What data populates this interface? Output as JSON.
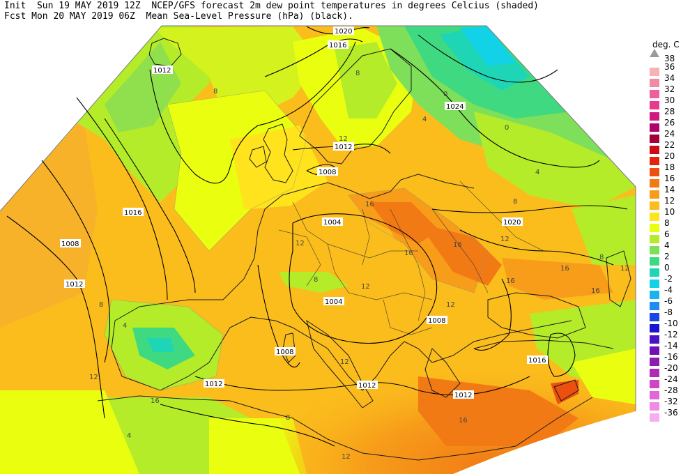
{
  "header": {
    "line1": "Init  Sun 19 MAY 2019 12Z  NCEP/GFS forecast 2m dew point temperatures in degrees Celcius (shaded)",
    "line2": "Fcst Mon 20 MAY 2019 06Z  Mean Sea-Level Pressure (hPa) (black)."
  },
  "legend": {
    "unit": "deg. C",
    "top_label": "38",
    "entries": [
      {
        "label": "36",
        "color": "#f7b3b3"
      },
      {
        "label": "34",
        "color": "#f08aa5"
      },
      {
        "label": "32",
        "color": "#ef5f9a"
      },
      {
        "label": "30",
        "color": "#e83a8f"
      },
      {
        "label": "28",
        "color": "#d11880"
      },
      {
        "label": "26",
        "color": "#b0006b"
      },
      {
        "label": "24",
        "color": "#a3003a"
      },
      {
        "label": "22",
        "color": "#cc0a17"
      },
      {
        "label": "20",
        "color": "#e3230c"
      },
      {
        "label": "18",
        "color": "#ec4f0e"
      },
      {
        "label": "16",
        "color": "#f27a15"
      },
      {
        "label": "14",
        "color": "#f79d1a"
      },
      {
        "label": "12",
        "color": "#fbbd1c"
      },
      {
        "label": "10",
        "color": "#ffe31c"
      },
      {
        "label": "8",
        "color": "#eaff10"
      },
      {
        "label": "6",
        "color": "#b4ec2a"
      },
      {
        "label": "4",
        "color": "#7ee05a"
      },
      {
        "label": "2",
        "color": "#3fd982"
      },
      {
        "label": "0",
        "color": "#1ed6b6"
      },
      {
        "label": "-2",
        "color": "#12d2e8"
      },
      {
        "label": "-4",
        "color": "#18b4ee"
      },
      {
        "label": "-6",
        "color": "#1c8cf2"
      },
      {
        "label": "-8",
        "color": "#1747e6"
      },
      {
        "label": "-10",
        "color": "#1a14d2"
      },
      {
        "label": "-12",
        "color": "#4a12c4"
      },
      {
        "label": "-14",
        "color": "#7010b6"
      },
      {
        "label": "-16",
        "color": "#8e1cb0"
      },
      {
        "label": "-20",
        "color": "#b02bb5"
      },
      {
        "label": "-24",
        "color": "#cf45c8"
      },
      {
        "label": "-28",
        "color": "#e266d9"
      },
      {
        "label": "-32",
        "color": "#ef8be5"
      },
      {
        "label": "-36",
        "color": "#f7aef0"
      }
    ]
  },
  "isobar_labels": [
    "1020",
    "1016",
    "1012",
    "1024",
    "1020",
    "1012",
    "1008",
    "1016",
    "1008",
    "1012",
    "1004",
    "1004",
    "1008",
    "1008",
    "1012",
    "1012",
    "1016",
    "1012"
  ],
  "contour_labels": [
    "8",
    "8",
    "12",
    "4",
    "0",
    "0",
    "4",
    "8",
    "12",
    "16",
    "16",
    "12",
    "8",
    "12",
    "16",
    "16",
    "16",
    "12",
    "16",
    "12",
    "8",
    "8",
    "4",
    "12",
    "16",
    "16",
    "12",
    "8",
    "4",
    "12"
  ]
}
